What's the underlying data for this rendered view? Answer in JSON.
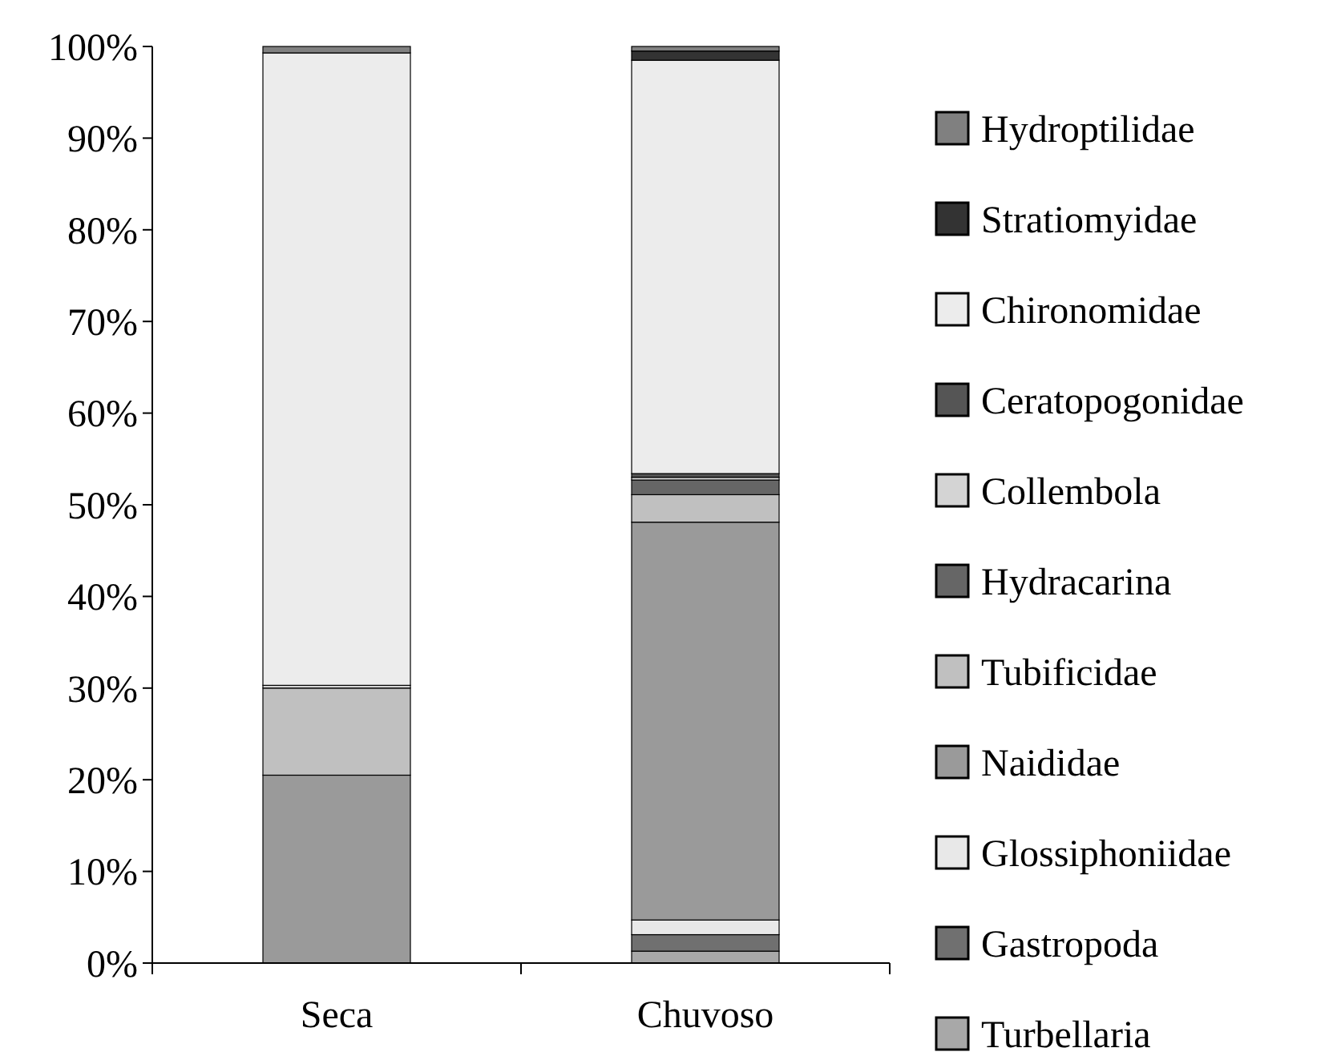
{
  "chart_data": {
    "type": "bar",
    "stacked": true,
    "categories": [
      "Seca",
      "Chuvoso"
    ],
    "ylim": [
      0,
      100
    ],
    "yticks": [
      {
        "value": 0,
        "label": "0%"
      },
      {
        "value": 10,
        "label": "10%"
      },
      {
        "value": 20,
        "label": "20%"
      },
      {
        "value": 30,
        "label": "30%"
      },
      {
        "value": 40,
        "label": "40%"
      },
      {
        "value": 50,
        "label": "50%"
      },
      {
        "value": 60,
        "label": "60%"
      },
      {
        "value": 70,
        "label": "70%"
      },
      {
        "value": 80,
        "label": "80%"
      },
      {
        "value": 90,
        "label": "90%"
      },
      {
        "value": 100,
        "label": "100%"
      }
    ],
    "legend": "right",
    "grid": false,
    "series": [
      {
        "name": "Turbellaria",
        "color": "#a8a8a8",
        "values": [
          0,
          1.3
        ]
      },
      {
        "name": "Gastropoda",
        "color": "#707070",
        "values": [
          0,
          1.8
        ]
      },
      {
        "name": "Glossiphoniidae",
        "color": "#e8e8e8",
        "values": [
          0,
          1.6
        ]
      },
      {
        "name": "Naididae",
        "color": "#9a9a9a",
        "values": [
          20.5,
          43.4
        ]
      },
      {
        "name": "Tubificidae",
        "color": "#c0c0c0",
        "values": [
          9.5,
          3.0
        ]
      },
      {
        "name": "Hydracarina",
        "color": "#666666",
        "values": [
          0,
          1.6
        ]
      },
      {
        "name": "Collembola",
        "color": "#d4d4d4",
        "values": [
          0.3,
          0.3
        ]
      },
      {
        "name": "Ceratopogonidae",
        "color": "#555555",
        "values": [
          0,
          0.4
        ]
      },
      {
        "name": "Chironomidae",
        "color": "#ececec",
        "values": [
          69.0,
          45.1
        ]
      },
      {
        "name": "Stratiomyidae",
        "color": "#333333",
        "values": [
          0,
          1.0
        ]
      },
      {
        "name": "Hydroptilidae",
        "color": "#808080",
        "values": [
          0.7,
          0.5
        ]
      }
    ]
  }
}
